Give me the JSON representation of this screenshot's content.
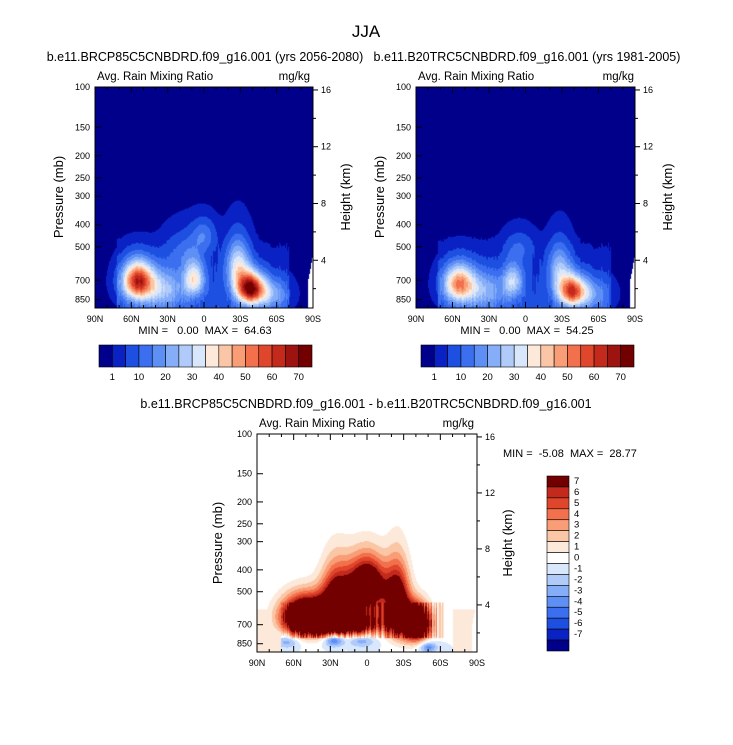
{
  "figure": {
    "title": "JJA"
  },
  "chart_data": [
    {
      "id": "future",
      "type": "heatmap",
      "title": "b.e11.BRCP85C5CNBDRD.f09_g16.001 (yrs 2056-2080)",
      "left_label": "Avg. Rain Mixing Ratio",
      "right_label": "mg/kg",
      "ylabel": "Pressure (mb)",
      "y2label": "Height (km)",
      "xlabel": "",
      "x_ticks": [
        "90N",
        "60N",
        "30N",
        "0",
        "30S",
        "60S",
        "90S"
      ],
      "x_tick_values": [
        90,
        60,
        30,
        0,
        -30,
        -60,
        -90
      ],
      "y_ticks": [
        "100",
        "150",
        "200",
        "250",
        "300",
        "400",
        "500",
        "700",
        "850"
      ],
      "y_tick_values": [
        100,
        150,
        200,
        250,
        300,
        400,
        500,
        700,
        850
      ],
      "y2_ticks": [
        "4",
        "8",
        "12",
        "16"
      ],
      "y2_tick_values": [
        4,
        8,
        12,
        16
      ],
      "ylim": [
        100,
        925
      ],
      "xlim": [
        90,
        -90
      ],
      "stats": "MIN =   0.00  MAX =  64.63",
      "min": 0.0,
      "max": 64.63,
      "blobs": [
        {
          "lat": 55,
          "p": 700,
          "amp": 55,
          "dlat": 9,
          "dp": 95
        },
        {
          "lat": 8,
          "p": 690,
          "amp": 32,
          "dlat": 6,
          "dp": 85
        },
        {
          "lat": -38,
          "p": 760,
          "amp": 65,
          "dlat": 8,
          "dp": 85
        },
        {
          "lat": -28,
          "p": 600,
          "amp": 30,
          "dlat": 7,
          "dp": 110
        },
        {
          "lat": 35,
          "p": 760,
          "amp": 22,
          "dlat": 14,
          "dp": 110
        },
        {
          "lat": 0,
          "p": 440,
          "amp": 12,
          "dlat": 7,
          "dp": 50
        },
        {
          "lat": 15,
          "p": 520,
          "amp": 10,
          "dlat": 12,
          "dp": 80
        },
        {
          "lat": -55,
          "p": 800,
          "amp": 18,
          "dlat": 10,
          "dp": 90
        }
      ]
    },
    {
      "id": "historical",
      "type": "heatmap",
      "title": "b.e11.B20TRC5CNBDRD.f09_g16.001 (yrs 1981-2005)",
      "left_label": "Avg. Rain Mixing Ratio",
      "right_label": "mg/kg",
      "ylabel": "Pressure (mb)",
      "y2label": "Height (km)",
      "xlabel": "",
      "x_ticks": [
        "90N",
        "60N",
        "30N",
        "0",
        "30S",
        "60S",
        "90S"
      ],
      "x_tick_values": [
        90,
        60,
        30,
        0,
        -30,
        -60,
        -90
      ],
      "y_ticks": [
        "100",
        "150",
        "200",
        "250",
        "300",
        "400",
        "500",
        "700",
        "850"
      ],
      "y_tick_values": [
        100,
        150,
        200,
        250,
        300,
        400,
        500,
        700,
        850
      ],
      "y2_ticks": [
        "4",
        "8",
        "12",
        "16"
      ],
      "y2_tick_values": [
        4,
        8,
        12,
        16
      ],
      "ylim": [
        100,
        925
      ],
      "xlim": [
        90,
        -90
      ],
      "stats": "MIN =   0.00  MAX =  54.25",
      "min": 0.0,
      "max": 54.25,
      "blobs": [
        {
          "lat": 55,
          "p": 720,
          "amp": 42,
          "dlat": 9,
          "dp": 95
        },
        {
          "lat": 10,
          "p": 700,
          "amp": 24,
          "dlat": 6,
          "dp": 85
        },
        {
          "lat": -38,
          "p": 780,
          "amp": 52,
          "dlat": 8,
          "dp": 85
        },
        {
          "lat": -28,
          "p": 620,
          "amp": 22,
          "dlat": 7,
          "dp": 110
        },
        {
          "lat": 35,
          "p": 770,
          "amp": 18,
          "dlat": 14,
          "dp": 110
        },
        {
          "lat": 5,
          "p": 500,
          "amp": 9,
          "dlat": 9,
          "dp": 60
        },
        {
          "lat": -55,
          "p": 800,
          "amp": 14,
          "dlat": 10,
          "dp": 90
        }
      ]
    },
    {
      "id": "difference",
      "type": "heatmap",
      "title": "b.e11.BRCP85C5CNBDRD.f09_g16.001 - b.e11.B20TRC5CNBDRD.f09_g16.001",
      "left_label": "Avg. Rain Mixing Ratio",
      "right_label": "mg/kg",
      "ylabel": "Pressure (mb)",
      "y2label": "Height (km)",
      "xlabel": "",
      "x_ticks": [
        "90N",
        "60N",
        "30N",
        "0",
        "30S",
        "60S",
        "90S"
      ],
      "x_tick_values": [
        90,
        60,
        30,
        0,
        -30,
        -60,
        -90
      ],
      "y_ticks": [
        "100",
        "150",
        "200",
        "250",
        "300",
        "400",
        "500",
        "700",
        "850"
      ],
      "y_tick_values": [
        100,
        150,
        200,
        250,
        300,
        400,
        500,
        700,
        850
      ],
      "y2_ticks": [
        "4",
        "8",
        "12",
        "16"
      ],
      "y2_tick_values": [
        4,
        8,
        12,
        16
      ],
      "ylim": [
        100,
        925
      ],
      "xlim": [
        90,
        -90
      ],
      "stats": "MIN =  -5.08  MAX =  28.77",
      "min": -5.08,
      "max": 28.77,
      "blobs": [
        {
          "lat": 50,
          "p": 640,
          "amp": 14,
          "dlat": 14,
          "dp": 90
        },
        {
          "lat": 25,
          "p": 560,
          "amp": 10,
          "dlat": 9,
          "dp": 130
        },
        {
          "lat": 0,
          "p": 470,
          "amp": 12,
          "dlat": 11,
          "dp": 90
        },
        {
          "lat": -25,
          "p": 560,
          "amp": 10,
          "dlat": 7,
          "dp": 140
        },
        {
          "lat": -40,
          "p": 690,
          "amp": 14,
          "dlat": 8,
          "dp": 90
        },
        {
          "lat": 15,
          "p": 690,
          "amp": 9,
          "dlat": 22,
          "dp": 60
        },
        {
          "lat": 27,
          "p": 810,
          "amp": -6,
          "dlat": 6,
          "dp": 45
        },
        {
          "lat": 5,
          "p": 820,
          "amp": -3,
          "dlat": 8,
          "dp": 40
        },
        {
          "lat": -50,
          "p": 880,
          "amp": -4,
          "dlat": 5,
          "dp": 35
        },
        {
          "lat": 65,
          "p": 830,
          "amp": -3,
          "dlat": 7,
          "dp": 40
        }
      ]
    }
  ],
  "colorbars": {
    "absolute": {
      "labels": [
        "1",
        "10",
        "20",
        "30",
        "40",
        "50",
        "60",
        "70"
      ],
      "levels": [
        1,
        5,
        10,
        15,
        20,
        25,
        30,
        35,
        40,
        45,
        50,
        55,
        60,
        65,
        70
      ],
      "colors": [
        "#00008b",
        "#0a22c4",
        "#1d4fe0",
        "#3b6ff0",
        "#5e8ff5",
        "#86aef8",
        "#b0cbfa",
        "#d8e7fc",
        "#fde9d9",
        "#fbc6a6",
        "#f89d76",
        "#f2704c",
        "#e0462c",
        "#c42a1b",
        "#9d1310",
        "#720000"
      ]
    },
    "difference": {
      "labels": [
        "7",
        "6",
        "5",
        "4",
        "3",
        "2",
        "1",
        "0",
        "-1",
        "-2",
        "-3",
        "-4",
        "-5",
        "-6",
        "-7"
      ],
      "levels": [
        7,
        6,
        5,
        4,
        3,
        2,
        1,
        0,
        -1,
        -2,
        -3,
        -4,
        -5,
        -6,
        -7
      ],
      "colors": [
        "#720000",
        "#c42a1b",
        "#e0462c",
        "#f2704c",
        "#f89d76",
        "#fbc6a6",
        "#fde9d9",
        "#ffffff",
        "#d8e7fc",
        "#b0cbfa",
        "#86aef8",
        "#5e8ff5",
        "#3b6ff0",
        "#1d4fe0",
        "#0a22c4",
        "#00008b"
      ]
    }
  }
}
